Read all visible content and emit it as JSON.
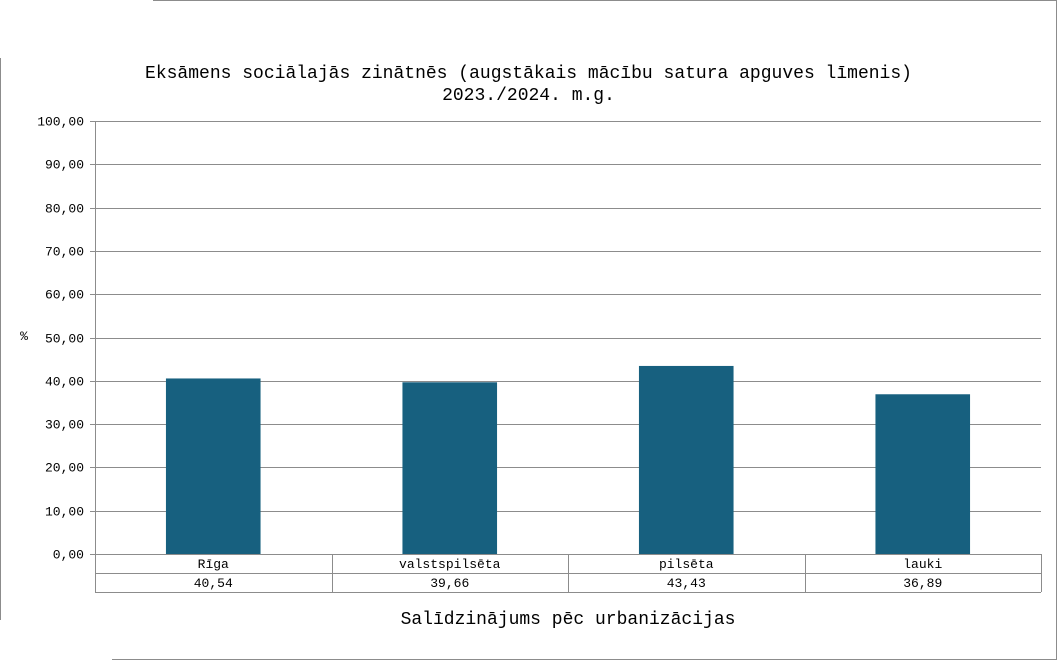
{
  "chart_data": {
    "type": "bar",
    "title": "Eksāmens sociālajās zinātnēs (augstākais mācību satura apguves līmenis)",
    "subtitle": "2023./2024. m.g.",
    "xlabel": "Salīdzinājums pēc urbanizācijas",
    "ylabel": "%",
    "categories": [
      "Rīga",
      "valstspilsēta",
      "pilsēta",
      "lauki"
    ],
    "values": [
      40.54,
      39.66,
      43.43,
      36.89
    ],
    "value_labels": [
      "40,54",
      "39,66",
      "43,43",
      "36,89"
    ],
    "ylim": [
      0,
      100
    ],
    "yticks": [
      "0,00",
      "10,00",
      "20,00",
      "30,00",
      "40,00",
      "50,00",
      "60,00",
      "70,00",
      "80,00",
      "90,00",
      "100,00"
    ],
    "grid": true,
    "bar_color": "#17607f",
    "data_table": true
  }
}
